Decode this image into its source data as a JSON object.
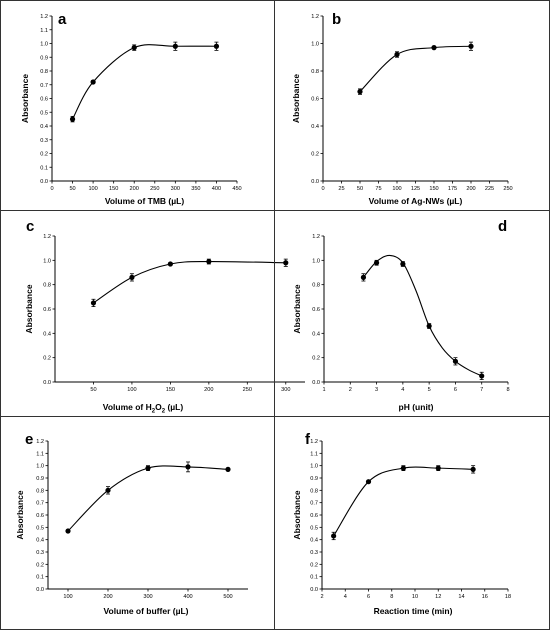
{
  "chart_data": [
    {
      "type": "line",
      "panel_label": "a",
      "xlabel": "Volume of TMB (µL)",
      "ylabel": "Absorbance",
      "xlim": [
        0,
        450
      ],
      "ylim": [
        0,
        1.2
      ],
      "xticks": [
        0,
        50,
        100,
        150,
        200,
        250,
        300,
        350,
        400,
        450
      ],
      "yticks": [
        0.0,
        0.1,
        0.2,
        0.3,
        0.4,
        0.5,
        0.6,
        0.7,
        0.8,
        0.9,
        1.0,
        1.1,
        1.2
      ],
      "ytick_labels": [
        "0.0",
        "0.1",
        "0.2",
        "0.3",
        "0.4",
        "0.5",
        "0.6",
        "0.7",
        "0.8",
        "0.9",
        "1.0",
        "1.1",
        "1.2"
      ],
      "x": [
        50,
        100,
        200,
        300,
        400
      ],
      "y": [
        0.45,
        0.72,
        0.97,
        0.98,
        0.98
      ],
      "yerr": [
        0.02,
        0.01,
        0.02,
        0.03,
        0.03
      ]
    },
    {
      "type": "line",
      "panel_label": "b",
      "xlabel": "Volume of Ag-NWs (µL)",
      "ylabel": "Absorbance",
      "xlim": [
        0,
        250
      ],
      "ylim": [
        0,
        1.2
      ],
      "xticks": [
        0,
        25,
        50,
        75,
        100,
        125,
        150,
        175,
        200,
        225,
        250
      ],
      "yticks": [
        0.0,
        0.2,
        0.4,
        0.6,
        0.8,
        1.0,
        1.2
      ],
      "ytick_labels": [
        "0.0",
        "0.2",
        "0.4",
        "0.6",
        "0.8",
        "1.0",
        "1.2"
      ],
      "x": [
        50,
        100,
        150,
        200
      ],
      "y": [
        0.65,
        0.92,
        0.97,
        0.98
      ],
      "yerr": [
        0.02,
        0.02,
        0.01,
        0.03
      ]
    },
    {
      "type": "line",
      "panel_label": "c",
      "xlabel_main": "Volume of H",
      "xlabel_sub": "2",
      "xlabel_mid": "O",
      "xlabel_sub2": "2",
      "xlabel_tail": " (µL)",
      "ylabel": "Absorbance",
      "xlim": [
        0,
        325
      ],
      "ylim": [
        0,
        1.2
      ],
      "xticks": [
        50,
        100,
        150,
        200,
        250,
        300
      ],
      "yticks": [
        0.0,
        0.2,
        0.4,
        0.6,
        0.8,
        1.0,
        1.2
      ],
      "ytick_labels": [
        "0.0",
        "0.2",
        "0.4",
        "0.6",
        "0.8",
        "1.0",
        "1.2"
      ],
      "x": [
        50,
        100,
        150,
        200,
        300
      ],
      "y": [
        0.65,
        0.86,
        0.97,
        0.99,
        0.98
      ],
      "yerr": [
        0.03,
        0.03,
        0.01,
        0.02,
        0.03
      ]
    },
    {
      "type": "line",
      "panel_label": "d",
      "xlabel": "pH (unit)",
      "ylabel": "Absorbance",
      "xlim": [
        1,
        8
      ],
      "ylim": [
        0,
        1.2
      ],
      "xticks": [
        1,
        2,
        3,
        4,
        5,
        6,
        7,
        8
      ],
      "yticks": [
        0.0,
        0.2,
        0.4,
        0.6,
        0.8,
        1.0,
        1.2
      ],
      "ytick_labels": [
        "0.0",
        "0.2",
        "0.4",
        "0.6",
        "0.8",
        "1.0",
        "1.2"
      ],
      "x": [
        2.5,
        3,
        4,
        5,
        6,
        7
      ],
      "y": [
        0.86,
        0.98,
        0.97,
        0.46,
        0.17,
        0.05
      ],
      "yerr": [
        0.03,
        0.02,
        0.02,
        0.02,
        0.03,
        0.03
      ],
      "curve": [
        [
          2.5,
          0.86
        ],
        [
          3.0,
          0.99
        ],
        [
          3.5,
          1.04
        ],
        [
          4.0,
          0.98
        ],
        [
          4.5,
          0.75
        ],
        [
          5.0,
          0.46
        ],
        [
          5.5,
          0.28
        ],
        [
          6.0,
          0.17
        ],
        [
          6.5,
          0.1
        ],
        [
          7.0,
          0.05
        ]
      ]
    },
    {
      "type": "line",
      "panel_label": "e",
      "xlabel": "Volume of buffer (µL)",
      "ylabel": "Absorbance",
      "xlim": [
        50,
        550
      ],
      "ylim": [
        0,
        1.2
      ],
      "xticks": [
        100,
        200,
        300,
        400,
        500
      ],
      "yticks": [
        0.0,
        0.1,
        0.2,
        0.3,
        0.4,
        0.5,
        0.6,
        0.7,
        0.8,
        0.9,
        1.0,
        1.1,
        1.2
      ],
      "ytick_labels": [
        "0.0",
        "0.1",
        "0.2",
        "0.3",
        "0.4",
        "0.5",
        "0.6",
        "0.7",
        "0.8",
        "0.9",
        "1.0",
        "1.1",
        "1.2"
      ],
      "x": [
        100,
        200,
        300,
        400,
        500
      ],
      "y": [
        0.47,
        0.8,
        0.98,
        0.99,
        0.97
      ],
      "yerr": [
        0.01,
        0.03,
        0.02,
        0.04,
        0.01
      ]
    },
    {
      "type": "line",
      "panel_label": "f",
      "xlabel": "Reaction time (min)",
      "ylabel": "Absorbance",
      "xlim": [
        2,
        18
      ],
      "ylim": [
        0,
        1.2
      ],
      "xticks": [
        2,
        4,
        6,
        8,
        10,
        12,
        14,
        16,
        18
      ],
      "yticks": [
        0.0,
        0.1,
        0.2,
        0.3,
        0.4,
        0.5,
        0.6,
        0.7,
        0.8,
        0.9,
        1.0,
        1.1,
        1.2
      ],
      "ytick_labels": [
        "0.0",
        "0.1",
        "0.2",
        "0.3",
        "0.4",
        "0.5",
        "0.6",
        "0.7",
        "0.8",
        "0.9",
        "1.0",
        "1.1",
        "1.2"
      ],
      "x": [
        3,
        6,
        9,
        12,
        15
      ],
      "y": [
        0.43,
        0.87,
        0.98,
        0.98,
        0.97
      ],
      "yerr": [
        0.03,
        0.01,
        0.02,
        0.02,
        0.03
      ]
    }
  ]
}
